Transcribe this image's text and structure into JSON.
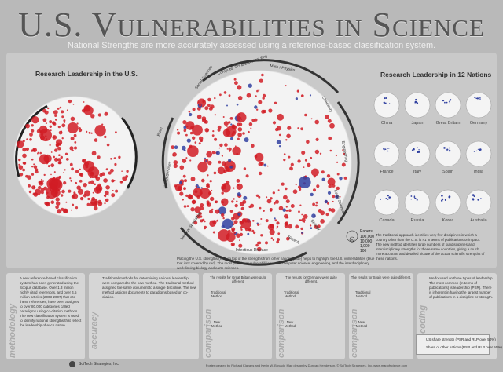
{
  "header": {
    "title": "U.S. Vulnerabilities in Science",
    "subtitle": "National Strengths are more accurately assessed using a reference-based classification system."
  },
  "panels": {
    "us_heading": "Research Leadership in the U.S.",
    "nations_heading": "Research Leadership in 12 Nations"
  },
  "nations": [
    "China",
    "Japan",
    "Great Britain",
    "Germany",
    "France",
    "Italy",
    "Spain",
    "India",
    "Canada",
    "Russia",
    "Korea",
    "Australia"
  ],
  "ring_labels": [
    "Social Sciences",
    "Computer Sci & Electrical Eng",
    "Math / Physics",
    "Chemistry",
    "Engineering",
    "Earth Sciences",
    "Biology",
    "Biotech",
    "Infectious Disease",
    "Medical Specialties",
    "Health Services",
    "Brain"
  ],
  "papers_legend": {
    "title": "Papers",
    "values": [
      "100,000",
      "10,000",
      "1,000",
      "100"
    ]
  },
  "captions": {
    "main": "Placing the U.S. strengths (red) on top of the strengths from other nations (blue) helps to highlight the U.S. vulnerabilities (blue that isn't covered by red). The most prominent vulnerabilities are in computer science, engineering, and the interdisciplinary work linking biology and earth sciences.",
    "nations": "The traditional approach identifies very few disciplines in which a country other than the U.S. is #1 in terms of publications or impact. The new method identifies large numbers of subdisciplines and interdisciplinary strengths for these same countries, giving a much more accurate and detailed picture of the actual scientific strengths of these nations."
  },
  "bottom": {
    "methodology_label": "methodology",
    "accuracy_label": "accuracy",
    "comparison_label": "comparison",
    "coding_label": "coding",
    "methodology_text": "A new reference-based classification system has been generated using the Scopus database. Over 1.3 million highly cited references, and over 4.5 million articles (2003-2007) that cite these references, have been assigned to over 80,000 categories called paradigms using co-citation methods. The new classification system is used to identify national strengths that reflect the leadership of each nation.",
    "accuracy_text": "Traditional methods for determining national leadership were compared to the new method. The traditional method assigned the same document to a single discipline. The new method assigns documents to paradigms based on co-citation.",
    "comp_gb_head": "The results for Great Britain were quite different.",
    "comp_de_head": "The results for Germany were quite different.",
    "comp_sp_head": "The results for Spain were quite different.",
    "traditional_method": "Traditional Method",
    "new_method": "New Method",
    "coding_text": "We focused on three types of leadership. The most common (in terms of publications) is leadership (PSR). There is inherent in having the largest number of publications in a discipline or strength.",
    "legend_red": "US share strength (PSR and RLP over 50%)",
    "legend_blue": "Share of other nations (PSR and RLP over 50%)"
  },
  "footer": {
    "logo": "SciTech Strategies, Inc.",
    "credit": "Poster created by Richard Klavans and Kevin W. Boyack. Map design by Duncan Henderson. © SciTech Strategies, Inc. www.mapofscience.com"
  },
  "colors": {
    "us_red": "#d11c24",
    "other_blue": "#3040a0",
    "background": "#b9b9b9"
  }
}
